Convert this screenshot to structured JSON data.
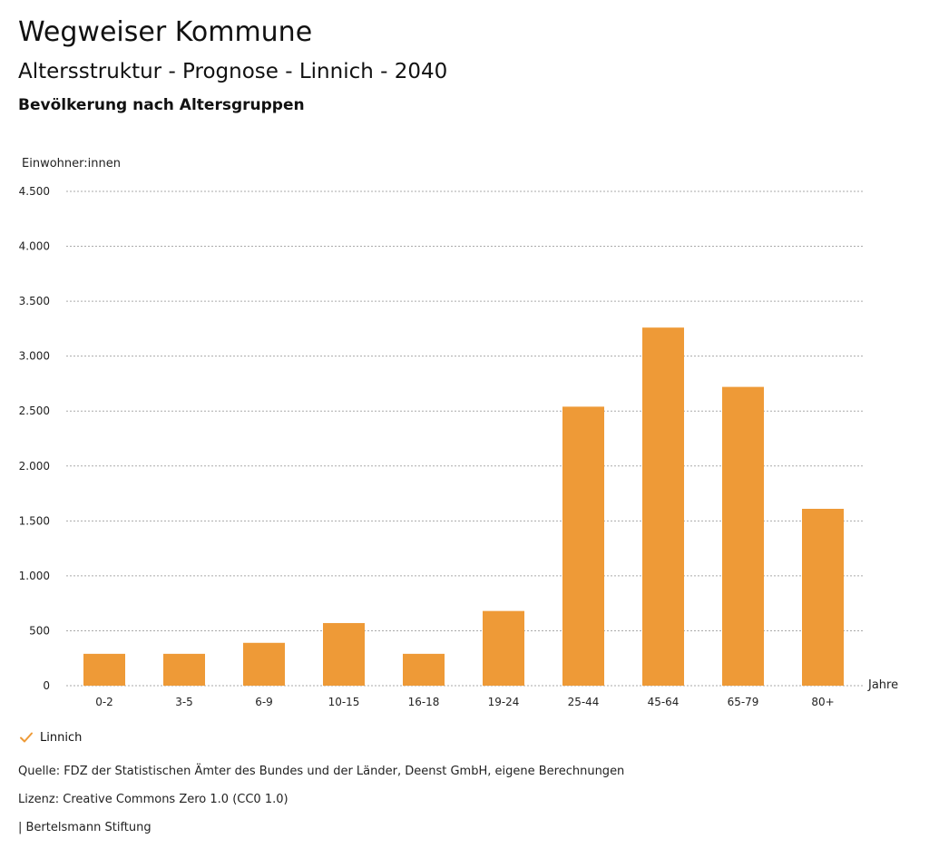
{
  "header": {
    "site_title": "Wegweiser Kommune",
    "chart_title": "Altersstruktur - Prognose - Linnich - 2040",
    "chart_subtitle": "Bevölkerung nach Altersgruppen"
  },
  "chart_data": {
    "type": "bar",
    "ylabel": "Einwohner:innen",
    "xlabel": "Jahre",
    "categories": [
      "0-2",
      "3-5",
      "6-9",
      "10-15",
      "16-18",
      "19-24",
      "25-44",
      "45-64",
      "65-79",
      "80+"
    ],
    "series": [
      {
        "name": "Linnich",
        "values": [
          290,
          290,
          390,
          570,
          290,
          680,
          2540,
          3260,
          2720,
          1610
        ]
      }
    ],
    "ylim": [
      0,
      4500
    ],
    "yticks": [
      0,
      500,
      1000,
      1500,
      2000,
      2500,
      3000,
      3500,
      4000,
      4500
    ],
    "ytick_labels": [
      "0",
      "500",
      "1.000",
      "1.500",
      "2.000",
      "2.500",
      "3.000",
      "3.500",
      "4.000",
      "4.500"
    ],
    "grid": true,
    "legend_position": "bottom-left",
    "bar_color": "#EE9A37",
    "grid_color": "#AAAAAA"
  },
  "legend": {
    "label": "Linnich"
  },
  "footer": {
    "source": "Quelle: FDZ der Statistischen Ämter des Bundes und der Länder, Deenst GmbH, eigene Berechnungen",
    "license": "Lizenz: Creative Commons Zero 1.0 (CC0 1.0)",
    "publisher": "| Bertelsmann Stiftung"
  }
}
